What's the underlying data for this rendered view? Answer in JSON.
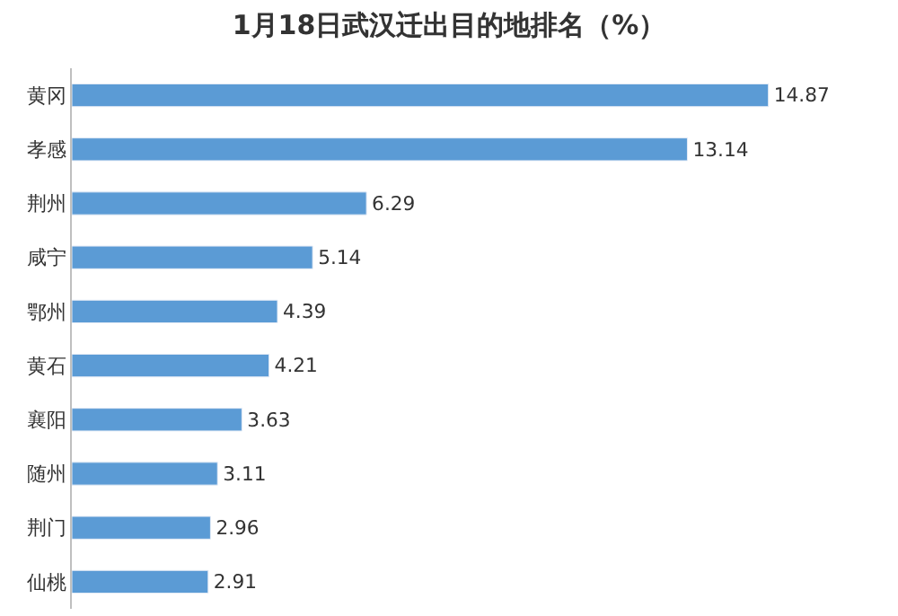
{
  "chart_data": {
    "type": "bar",
    "orientation": "horizontal",
    "title": "1月18日武汉迁出目的地排名（%）",
    "categories": [
      "黄冈",
      "孝感",
      "荆州",
      "咸宁",
      "鄂州",
      "黄石",
      "襄阳",
      "随州",
      "荆门",
      "仙桃"
    ],
    "values": [
      14.87,
      13.14,
      6.29,
      5.14,
      4.39,
      4.21,
      3.63,
      3.11,
      2.96,
      2.91
    ],
    "color": "#5b9bd5",
    "data_labels": true
  }
}
